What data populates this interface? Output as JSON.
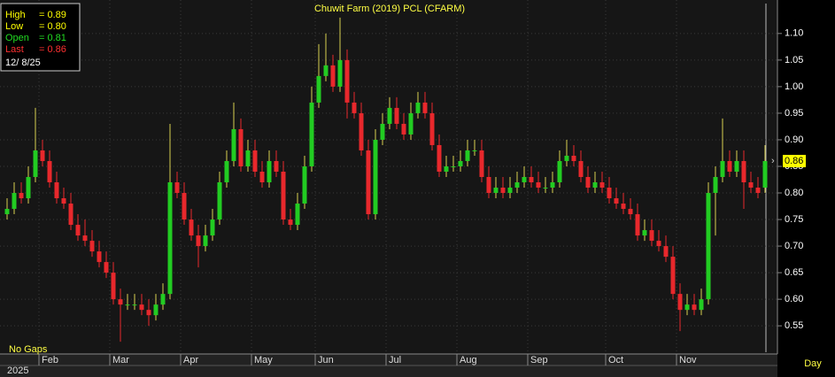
{
  "chart_data": {
    "type": "candlestick",
    "title": "Chuwit Farm (2019) PCL (CFARM)",
    "period": "Day",
    "gaps_note": "No Gaps",
    "year": "2025",
    "date": "12/ 8/25",
    "readout": [
      {
        "name": "High",
        "text": "= 0.89",
        "color": "#ffff00"
      },
      {
        "name": "Low",
        "text": "= 0.80",
        "color": "#ffff00"
      },
      {
        "name": "Open",
        "text": "= 0.81",
        "color": "#22dd22"
      },
      {
        "name": "Last",
        "text": "= 0.86",
        "color": "#ff3030"
      }
    ],
    "up_color": "#22cc22",
    "down_color": "#e8282c",
    "wick_color": "#d8d050",
    "title_color": "#ffff44",
    "grid": true,
    "ylim": [
      0.497,
      1.163
    ],
    "yticks": [
      0.55,
      {
        "value": 0.6,
        "label": "0.60"
      },
      0.65,
      {
        "value": 0.7,
        "label": "0.70"
      },
      0.75,
      {
        "value": 0.8,
        "label": "0.80"
      },
      0.85,
      {
        "value": 0.9,
        "label": "0.90"
      },
      0.95,
      {
        "value": 1,
        "label": "1.00"
      },
      1.05,
      {
        "value": 1.1,
        "label": "1.10"
      }
    ],
    "categories": [
      null,
      null,
      null,
      null,
      null,
      "Feb",
      null,
      null,
      null,
      null,
      null,
      null,
      null,
      null,
      null,
      "Mar",
      null,
      null,
      null,
      null,
      null,
      null,
      null,
      null,
      null,
      "Apr",
      null,
      null,
      null,
      null,
      null,
      null,
      null,
      null,
      null,
      "May",
      null,
      null,
      null,
      null,
      null,
      null,
      null,
      null,
      "Jun",
      null,
      null,
      null,
      null,
      null,
      null,
      null,
      null,
      null,
      "Jul",
      null,
      null,
      null,
      null,
      null,
      null,
      null,
      null,
      null,
      "Aug",
      null,
      null,
      null,
      null,
      null,
      null,
      null,
      null,
      null,
      "Sep",
      null,
      null,
      null,
      null,
      null,
      null,
      null,
      null,
      null,
      null,
      "Oct",
      null,
      null,
      null,
      null,
      null,
      null,
      null,
      null,
      null,
      "Nov",
      null,
      null,
      null,
      null,
      null,
      null,
      null,
      null,
      null,
      null,
      null,
      null
    ],
    "open": [
      0.76,
      0.77,
      0.8,
      0.79,
      0.83,
      0.88,
      0.86,
      0.82,
      0.79,
      0.78,
      0.74,
      0.72,
      0.71,
      0.69,
      0.67,
      0.65,
      0.6,
      0.59,
      0.59,
      0.59,
      0.58,
      0.57,
      0.59,
      0.61,
      0.82,
      0.8,
      0.75,
      0.72,
      0.7,
      0.72,
      0.75,
      0.82,
      0.86,
      0.92,
      0.85,
      0.88,
      0.84,
      0.82,
      0.86,
      0.84,
      0.75,
      0.74,
      0.78,
      0.85,
      0.97,
      1.02,
      1.04,
      1.0,
      1.05,
      0.97,
      0.95,
      0.88,
      0.76,
      0.9,
      0.93,
      0.96,
      0.93,
      0.91,
      0.95,
      0.97,
      0.95,
      0.89,
      0.84,
      0.85,
      0.85,
      0.86,
      0.88,
      0.88,
      0.83,
      0.8,
      0.81,
      0.8,
      0.81,
      0.82,
      0.83,
      0.82,
      0.81,
      0.81,
      0.82,
      0.86,
      0.87,
      0.86,
      0.83,
      0.81,
      0.82,
      0.81,
      0.79,
      0.78,
      0.77,
      0.76,
      0.72,
      0.73,
      0.71,
      0.7,
      0.68,
      0.61,
      0.58,
      0.59,
      0.58,
      0.6,
      0.8,
      0.83,
      0.86,
      0.84,
      0.86,
      0.82,
      0.81,
      0.81
    ],
    "high": [
      0.79,
      0.82,
      0.82,
      0.85,
      0.96,
      0.9,
      0.88,
      0.84,
      0.81,
      0.8,
      0.76,
      0.75,
      0.73,
      0.71,
      0.69,
      0.67,
      0.62,
      0.61,
      0.61,
      0.61,
      0.6,
      0.61,
      0.63,
      0.93,
      0.84,
      0.82,
      0.77,
      0.74,
      0.74,
      0.77,
      0.84,
      0.88,
      0.97,
      0.94,
      0.9,
      0.9,
      0.86,
      0.88,
      0.88,
      0.86,
      0.77,
      0.8,
      0.87,
      1.0,
      1.08,
      1.1,
      1.06,
      1.13,
      1.07,
      0.99,
      0.97,
      0.9,
      0.92,
      0.95,
      0.98,
      0.98,
      0.95,
      0.97,
      0.99,
      0.99,
      0.97,
      0.91,
      0.87,
      0.87,
      0.88,
      0.9,
      0.9,
      0.9,
      0.85,
      0.83,
      0.83,
      0.83,
      0.84,
      0.85,
      0.85,
      0.84,
      0.83,
      0.84,
      0.88,
      0.9,
      0.89,
      0.88,
      0.85,
      0.84,
      0.84,
      0.83,
      0.81,
      0.8,
      0.79,
      0.78,
      0.75,
      0.75,
      0.73,
      0.72,
      0.7,
      0.63,
      0.61,
      0.61,
      0.62,
      0.82,
      0.85,
      0.94,
      0.88,
      0.88,
      0.88,
      0.84,
      0.83,
      0.89
    ],
    "low": [
      0.75,
      0.76,
      0.78,
      0.78,
      0.82,
      0.85,
      0.81,
      0.78,
      0.77,
      0.73,
      0.71,
      0.7,
      0.68,
      0.66,
      0.64,
      0.59,
      0.52,
      0.58,
      0.58,
      0.57,
      0.55,
      0.56,
      0.58,
      0.6,
      0.79,
      0.74,
      0.71,
      0.66,
      0.69,
      0.71,
      0.74,
      0.81,
      0.85,
      0.84,
      0.84,
      0.83,
      0.81,
      0.81,
      0.83,
      0.74,
      0.73,
      0.73,
      0.77,
      0.84,
      0.96,
      1.01,
      0.99,
      0.99,
      0.94,
      0.94,
      0.87,
      0.75,
      0.75,
      0.89,
      0.92,
      0.92,
      0.9,
      0.9,
      0.94,
      0.94,
      0.88,
      0.83,
      0.83,
      0.84,
      0.84,
      0.85,
      0.87,
      0.82,
      0.79,
      0.79,
      0.79,
      0.79,
      0.8,
      0.81,
      0.81,
      0.8,
      0.8,
      0.8,
      0.81,
      0.85,
      0.85,
      0.82,
      0.8,
      0.8,
      0.8,
      0.78,
      0.77,
      0.76,
      0.75,
      0.71,
      0.71,
      0.7,
      0.69,
      0.67,
      0.6,
      0.54,
      0.57,
      0.57,
      0.57,
      0.59,
      0.72,
      0.82,
      0.83,
      0.83,
      0.77,
      0.8,
      0.79,
      0.8
    ],
    "close": [
      0.77,
      0.8,
      0.79,
      0.83,
      0.88,
      0.86,
      0.82,
      0.79,
      0.78,
      0.74,
      0.72,
      0.71,
      0.69,
      0.67,
      0.65,
      0.6,
      0.59,
      0.59,
      0.59,
      0.58,
      0.57,
      0.59,
      0.61,
      0.82,
      0.8,
      0.75,
      0.72,
      0.7,
      0.72,
      0.75,
      0.82,
      0.86,
      0.92,
      0.85,
      0.88,
      0.84,
      0.82,
      0.86,
      0.84,
      0.75,
      0.74,
      0.78,
      0.85,
      0.97,
      1.02,
      1.04,
      1.0,
      1.05,
      0.97,
      0.95,
      0.88,
      0.76,
      0.9,
      0.93,
      0.96,
      0.93,
      0.91,
      0.95,
      0.97,
      0.95,
      0.89,
      0.84,
      0.85,
      0.85,
      0.86,
      0.88,
      0.88,
      0.83,
      0.8,
      0.81,
      0.8,
      0.81,
      0.82,
      0.83,
      0.82,
      0.81,
      0.81,
      0.82,
      0.86,
      0.87,
      0.86,
      0.83,
      0.81,
      0.82,
      0.81,
      0.79,
      0.78,
      0.77,
      0.76,
      0.72,
      0.73,
      0.71,
      0.7,
      0.68,
      0.61,
      0.58,
      0.59,
      0.58,
      0.6,
      0.8,
      0.83,
      0.86,
      0.84,
      0.86,
      0.82,
      0.81,
      0.8,
      0.86
    ]
  }
}
